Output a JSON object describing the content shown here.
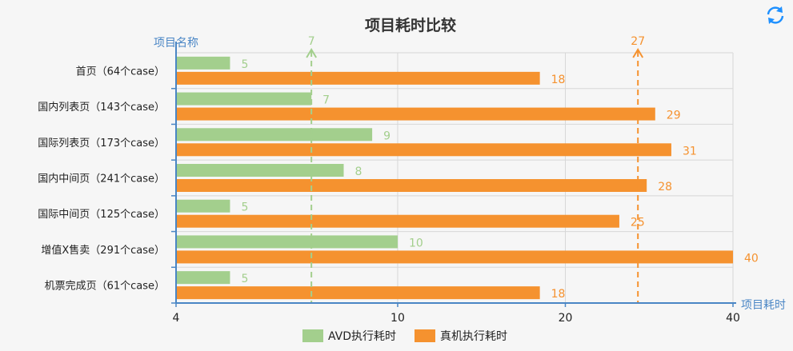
{
  "chart_data": {
    "type": "bar",
    "orientation": "horizontal",
    "title": "项目耗时比较",
    "xlabel": "项目耗时",
    "ylabel": "项目名称",
    "x_scale": "log",
    "xlim": [
      4,
      40
    ],
    "x_ticks": [
      "4",
      "10",
      "20",
      "40"
    ],
    "grid": true,
    "legend_position": "bottom",
    "categories": [
      "首页（64个case）",
      "国内列表页（143个case）",
      "国际列表页（173个case）",
      "国内中间页（241个case）",
      "国际中间页（125个case）",
      "增值X售卖（291个case）",
      "机票完成页（61个case）"
    ],
    "series": [
      {
        "name": "AVD执行耗时",
        "color": "#a3cf8d",
        "values": [
          5,
          7,
          9,
          8,
          5,
          10,
          5
        ]
      },
      {
        "name": "真机执行耗时",
        "color": "#f5922f",
        "values": [
          18,
          29,
          31,
          28,
          25,
          40,
          18
        ]
      }
    ],
    "reference_lines": [
      {
        "value": 7,
        "label": "7",
        "color": "#a3cf8d"
      },
      {
        "value": 27,
        "label": "27",
        "color": "#f5922f"
      }
    ]
  },
  "toolbar": {
    "refresh_icon": "refresh-icon",
    "accent": "#1e90ff"
  }
}
